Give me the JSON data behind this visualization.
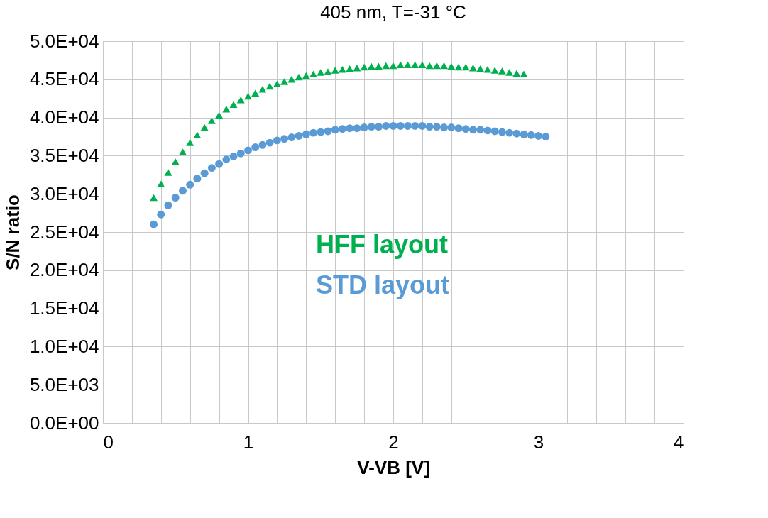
{
  "chart_data": {
    "type": "scatter",
    "title": "405 nm, T=-31 °C",
    "xlabel": "V-VB [V]",
    "ylabel": "S/N ratio",
    "xlim": [
      0,
      4
    ],
    "ylim": [
      0,
      50000
    ],
    "xticks": [
      0,
      {
        "value": 0.2,
        "label": null
      },
      {
        "value": 0.4,
        "label": null
      },
      {
        "value": 0.6,
        "label": null
      },
      {
        "value": 0.8,
        "label": null
      },
      1,
      {
        "value": 1.2,
        "label": null
      },
      {
        "value": 1.4,
        "label": null
      },
      {
        "value": 1.6,
        "label": null
      },
      {
        "value": 1.8,
        "label": null
      },
      2,
      {
        "value": 2.2,
        "label": null
      },
      {
        "value": 2.4,
        "label": null
      },
      {
        "value": 2.6,
        "label": null
      },
      {
        "value": 2.8,
        "label": null
      },
      3,
      {
        "value": 3.2,
        "label": null
      },
      {
        "value": 3.4,
        "label": null
      },
      {
        "value": 3.6,
        "label": null
      },
      {
        "value": 3.8,
        "label": null
      },
      4
    ],
    "yticks": [
      {
        "value": 0,
        "label": "0.0E+00"
      },
      {
        "value": 5000,
        "label": "5.0E+03"
      },
      {
        "value": 10000,
        "label": "1.0E+04"
      },
      {
        "value": 15000,
        "label": "1.5E+04"
      },
      {
        "value": 20000,
        "label": "2.0E+04"
      },
      {
        "value": 25000,
        "label": "2.5E+04"
      },
      {
        "value": 30000,
        "label": "3.0E+04"
      },
      {
        "value": 35000,
        "label": "3.5E+04"
      },
      {
        "value": 40000,
        "label": "4.0E+04"
      },
      {
        "value": 45000,
        "label": "4.5E+04"
      },
      {
        "value": 50000,
        "label": "5.0E+04"
      }
    ],
    "grid": true,
    "legend": "right",
    "series": [
      {
        "name": "HFF layout",
        "color": "#00b050",
        "marker": "triangle",
        "x": [
          0.35,
          0.4,
          0.45,
          0.5,
          0.55,
          0.6,
          0.65,
          0.7,
          0.75,
          0.8,
          0.85,
          0.9,
          0.95,
          1.0,
          1.05,
          1.1,
          1.15,
          1.2,
          1.25,
          1.3,
          1.35,
          1.4,
          1.45,
          1.5,
          1.55,
          1.6,
          1.65,
          1.7,
          1.75,
          1.8,
          1.85,
          1.9,
          1.95,
          2.0,
          2.05,
          2.1,
          2.15,
          2.2,
          2.25,
          2.3,
          2.35,
          2.4,
          2.45,
          2.5,
          2.55,
          2.6,
          2.65,
          2.7,
          2.75,
          2.8,
          2.85,
          2.9
        ],
        "values": [
          29500,
          31300,
          32800,
          34200,
          35500,
          36700,
          37700,
          38700,
          39600,
          40300,
          41100,
          41700,
          42300,
          42800,
          43200,
          43700,
          44100,
          44400,
          44700,
          45000,
          45300,
          45500,
          45700,
          45900,
          46000,
          46200,
          46300,
          46400,
          46500,
          46600,
          46700,
          46700,
          46800,
          46800,
          46900,
          46900,
          46900,
          46900,
          46800,
          46800,
          46800,
          46700,
          46600,
          46600,
          46500,
          46400,
          46300,
          46200,
          46100,
          45900,
          45800,
          45700
        ]
      },
      {
        "name": "STD layout",
        "color": "#5b9bd5",
        "marker": "circle",
        "x": [
          0.35,
          0.4,
          0.45,
          0.5,
          0.55,
          0.6,
          0.65,
          0.7,
          0.75,
          0.8,
          0.85,
          0.9,
          0.95,
          1.0,
          1.05,
          1.1,
          1.15,
          1.2,
          1.25,
          1.3,
          1.35,
          1.4,
          1.45,
          1.5,
          1.55,
          1.6,
          1.65,
          1.7,
          1.75,
          1.8,
          1.85,
          1.9,
          1.95,
          2.0,
          2.05,
          2.1,
          2.15,
          2.2,
          2.25,
          2.3,
          2.35,
          2.4,
          2.45,
          2.5,
          2.55,
          2.6,
          2.65,
          2.7,
          2.75,
          2.8,
          2.85,
          2.9,
          2.95,
          3.0,
          3.05
        ],
        "values": [
          26000,
          27300,
          28500,
          29500,
          30400,
          31200,
          32000,
          32700,
          33400,
          33900,
          34500,
          34900,
          35300,
          35700,
          36100,
          36400,
          36700,
          37000,
          37200,
          37400,
          37600,
          37800,
          38000,
          38100,
          38200,
          38400,
          38500,
          38600,
          38600,
          38700,
          38800,
          38800,
          38900,
          38900,
          38900,
          38900,
          38900,
          38900,
          38800,
          38800,
          38700,
          38700,
          38600,
          38500,
          38400,
          38400,
          38300,
          38200,
          38100,
          38000,
          37900,
          37800,
          37700,
          37600,
          37500
        ]
      }
    ]
  }
}
